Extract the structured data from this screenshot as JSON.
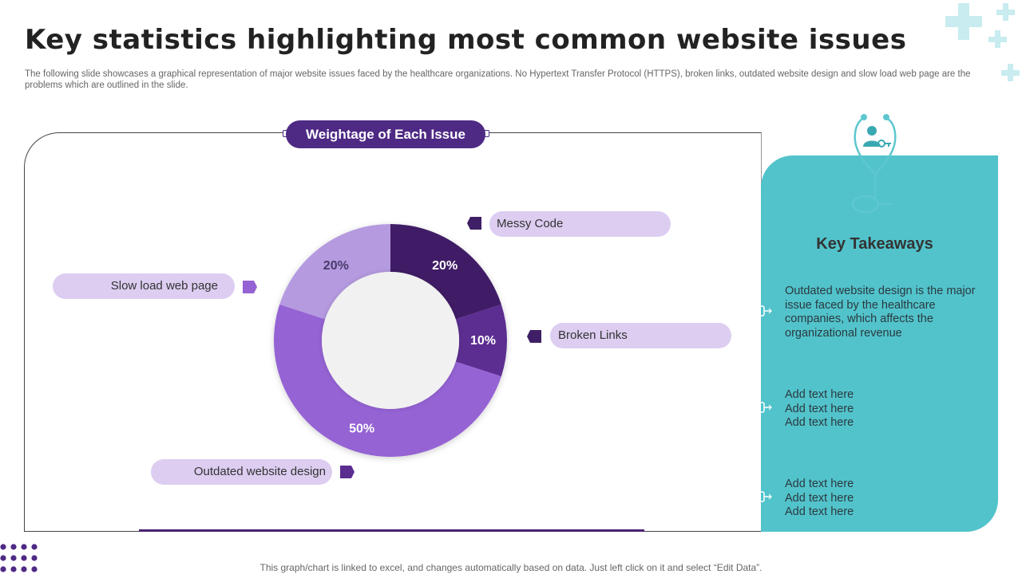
{
  "title": "Key statistics highlighting most common website issues",
  "subtitle": "The following slide showcases a graphical representation of major website issues faced by the healthcare organizations. No Hypertext Transfer Protocol (HTTPS),  broken links, outdated website design and slow load web page are the problems which are outlined in the slide.",
  "chart_header": "Weightage of Each Issue",
  "chart_data": {
    "type": "pie",
    "donut": true,
    "title": "",
    "categories": [
      "Messy Code",
      "Broken Links",
      "Outdated website design",
      "Slow load web page"
    ],
    "values": [
      20,
      10,
      50,
      20
    ],
    "value_labels": [
      "20%",
      "10%",
      "50%",
      "20%"
    ],
    "colors": [
      "#3f1f66",
      "#5b2d91",
      "#9563d4",
      "#b59ae0"
    ],
    "start_angle_deg": 0,
    "direction": "clockwise",
    "legend": "callout-labels"
  },
  "callouts": {
    "messy_code": "Messy Code",
    "broken_links": "Broken Links",
    "outdated_design": "Outdated website design",
    "slow_load": "Slow load web page"
  },
  "colors": {
    "accent_dark": "#4e2a84",
    "pill_light": "#dccdf1",
    "teal_panel": "#52c3cb",
    "plus_light": "#bfe9ee"
  },
  "takeaways": {
    "title": "Key Takeaways",
    "item1": "Outdated website design is the major issue faced by the healthcare companies, which affects the organizational revenue",
    "item2": [
      "Add text here",
      "Add text here",
      "Add text here"
    ],
    "item3": [
      "Add text here",
      "Add text here",
      "Add text here"
    ],
    "icon": "stethoscope-user-key-icon"
  },
  "footer": "This graph/chart is linked to excel,  and changes automatically based on data. Just left click on it and select “Edit Data”."
}
